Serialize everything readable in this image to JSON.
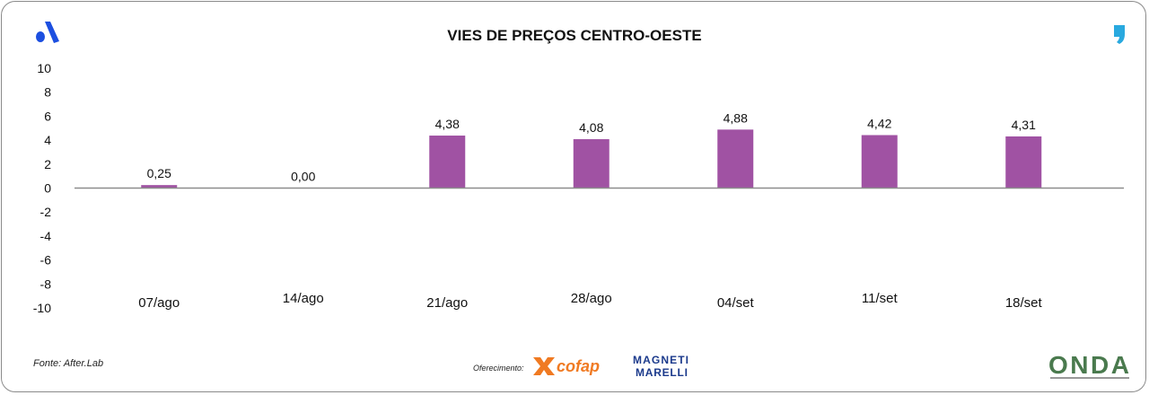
{
  "header": {
    "title": "VIES DE PREÇOS CENTRO-OESTE"
  },
  "footer": {
    "source": "Fonte: After.Lab",
    "sponsor_label": "Oferecimento:",
    "logos": [
      "cofap",
      "MAGNETI MARELLI",
      "ONDA"
    ]
  },
  "colors": {
    "bar": "#a052a3",
    "axis": "#8c8c8c",
    "logo_left": "#1c4fe0",
    "logo_right": "#29a9df",
    "cofap": "#f07a22",
    "marelli": "#1b3a8c"
  },
  "chart_data": {
    "type": "bar",
    "title": "VIES DE PREÇOS CENTRO-OESTE",
    "categories": [
      "07/ago",
      "14/ago",
      "21/ago",
      "28/ago",
      "04/set",
      "11/set",
      "18/set"
    ],
    "values": [
      0.25,
      0.0,
      4.38,
      4.08,
      4.88,
      4.42,
      4.31
    ],
    "data_labels": [
      "0,25",
      "0,00",
      "4,38",
      "4,08",
      "4,88",
      "4,42",
      "4,31"
    ],
    "yticks": [
      "10",
      "8",
      "6",
      "4",
      "2",
      "0",
      "-2",
      "-4",
      "-6",
      "-8",
      "-10"
    ],
    "ylim": [
      -10,
      10
    ],
    "grid": false,
    "legend": "none"
  }
}
